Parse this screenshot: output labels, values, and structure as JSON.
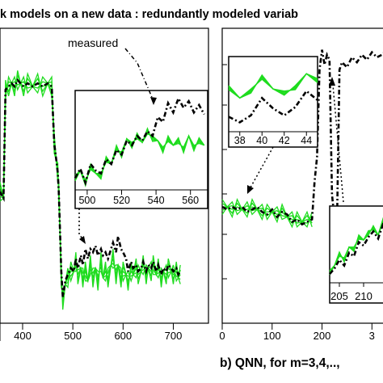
{
  "figure": {
    "title": "k models on a new data : redundantly modeled variab",
    "caption_b": "b) QNN, for m=3,4,.., ",
    "annotation": "measured"
  },
  "colors": {
    "measured": "#000000",
    "model": "#1fdc1f"
  },
  "chart_data": [
    {
      "type": "line",
      "panel": "left",
      "x_ticks": [
        "400",
        "500",
        "600",
        "700"
      ],
      "xlim": [
        355,
        770
      ],
      "series": [
        {
          "role": "measured",
          "x": [
            355,
            362,
            366,
            372,
            378,
            384,
            390,
            396,
            402,
            410,
            420,
            430,
            440,
            450,
            458,
            463,
            467,
            470,
            472,
            474,
            477,
            480,
            485,
            490,
            496,
            502,
            506,
            510,
            516,
            520,
            525,
            530,
            535,
            540,
            545,
            550,
            556,
            560,
            565,
            570,
            576,
            580,
            586,
            590,
            596,
            600,
            606,
            610,
            616,
            620,
            626,
            630,
            636,
            640,
            646,
            650,
            656,
            660,
            666,
            670,
            676,
            680,
            686,
            690,
            696,
            700,
            706,
            710,
            714
          ],
          "y": [
            0.3,
            0.28,
            0.62,
            0.63,
            0.64,
            0.63,
            0.65,
            0.64,
            0.63,
            0.64,
            0.63,
            0.64,
            0.63,
            0.64,
            0.63,
            0.45,
            0.4,
            0.36,
            0.3,
            0.2,
            0.05,
            -0.03,
            0.02,
            0.04,
            0.06,
            0.05,
            0.09,
            0.06,
            0.1,
            0.07,
            0.12,
            0.09,
            0.12,
            0.11,
            0.13,
            0.1,
            0.12,
            0.1,
            0.11,
            0.09,
            0.12,
            0.14,
            0.11,
            0.16,
            0.12,
            0.11,
            0.09,
            0.05,
            0.08,
            0.06,
            0.07,
            0.05,
            0.06,
            0.08,
            0.05,
            0.07,
            0.06,
            0.08,
            0.05,
            0.07,
            0.04,
            0.06,
            0.05,
            0.07,
            0.06,
            0.05,
            0.06,
            0.04,
            0.05
          ]
        },
        {
          "role": "model",
          "x": [
            355,
            362,
            366,
            372,
            378,
            384,
            390,
            396,
            402,
            410,
            420,
            430,
            440,
            450,
            458,
            463,
            467,
            470,
            472,
            474,
            477,
            480,
            485,
            490,
            496,
            502,
            506,
            510,
            516,
            520,
            525,
            530,
            535,
            540,
            545,
            550,
            556,
            560,
            565,
            570,
            576,
            580,
            586,
            590,
            596,
            600,
            606,
            610,
            616,
            620,
            626,
            630,
            636,
            640,
            646,
            650,
            656,
            660,
            666,
            670,
            676,
            680,
            686,
            690,
            696,
            700,
            706,
            710,
            714
          ],
          "y": [
            0.3,
            0.28,
            0.62,
            0.63,
            0.64,
            0.63,
            0.65,
            0.64,
            0.63,
            0.64,
            0.63,
            0.64,
            0.63,
            0.64,
            0.63,
            0.45,
            0.4,
            0.36,
            0.3,
            0.2,
            0.03,
            -0.04,
            0.01,
            0.03,
            0.05,
            0.05,
            0.08,
            0.04,
            0.06,
            0.03,
            0.05,
            0.02,
            0.07,
            0.03,
            0.06,
            0.02,
            0.08,
            0.03,
            0.05,
            0.03,
            0.07,
            0.09,
            0.04,
            0.07,
            0.03,
            0.05,
            0.04,
            0.02,
            0.05,
            0.04,
            0.06,
            0.04,
            0.05,
            0.07,
            0.04,
            0.06,
            0.05,
            0.07,
            0.04,
            0.06,
            0.03,
            0.05,
            0.04,
            0.06,
            0.05,
            0.04,
            0.05,
            0.03,
            0.04
          ]
        }
      ]
    },
    {
      "type": "line",
      "panel": "left-inset",
      "x_ticks": [
        "500",
        "520",
        "540",
        "560"
      ],
      "xlim": [
        493,
        570
      ],
      "series": [
        {
          "role": "measured",
          "x": [
            493,
            496,
            499,
            502,
            505,
            508,
            511,
            514,
            517,
            520,
            523,
            526,
            529,
            532,
            535,
            538,
            541,
            544,
            547,
            550,
            553,
            556,
            559,
            562,
            565,
            568
          ],
          "y": [
            0.1,
            0.2,
            0.05,
            0.25,
            0.18,
            0.15,
            0.3,
            0.25,
            0.4,
            0.35,
            0.5,
            0.45,
            0.55,
            0.5,
            0.6,
            0.55,
            0.75,
            0.7,
            0.9,
            0.8,
            0.95,
            0.85,
            0.92,
            0.8,
            0.88,
            0.78
          ]
        },
        {
          "role": "model",
          "x": [
            493,
            496,
            499,
            502,
            505,
            508,
            511,
            514,
            517,
            520,
            523,
            526,
            529,
            532,
            535,
            538,
            541,
            544,
            547,
            550,
            553,
            556,
            559,
            562,
            565,
            568
          ],
          "y": [
            0.1,
            0.18,
            0.05,
            0.22,
            0.15,
            0.12,
            0.3,
            0.25,
            0.42,
            0.35,
            0.52,
            0.45,
            0.55,
            0.48,
            0.6,
            0.52,
            0.5,
            0.4,
            0.52,
            0.45,
            0.5,
            0.4,
            0.55,
            0.42,
            0.5,
            0.45
          ]
        }
      ]
    },
    {
      "type": "line",
      "panel": "right",
      "x_ticks": [
        "0",
        "100",
        "200",
        "3"
      ],
      "xlim": [
        0,
        340
      ],
      "series": [
        {
          "role": "measured",
          "x": [
            0,
            10,
            20,
            30,
            40,
            50,
            60,
            70,
            80,
            90,
            100,
            110,
            120,
            130,
            140,
            150,
            160,
            170,
            180,
            185,
            190,
            195,
            200,
            205,
            210,
            215,
            220,
            225,
            230,
            235,
            240,
            250,
            260,
            270,
            280,
            290,
            300,
            310,
            320,
            330,
            340
          ],
          "y": [
            0.35,
            0.34,
            0.35,
            0.34,
            0.35,
            0.33,
            0.34,
            0.35,
            0.33,
            0.32,
            0.34,
            0.31,
            0.33,
            0.32,
            0.29,
            0.3,
            0.28,
            0.29,
            0.3,
            0.45,
            0.55,
            0.9,
            0.98,
            0.92,
            0.96,
            0.94,
            0.4,
            0.3,
            0.28,
            0.9,
            0.93,
            0.91,
            0.95,
            0.93,
            0.96,
            0.94,
            0.97,
            0.95,
            0.96,
            0.98,
            0.97
          ]
        },
        {
          "role": "model",
          "x": [
            0,
            10,
            20,
            30,
            40,
            50,
            60,
            70,
            80,
            90,
            100,
            110,
            120,
            130,
            140,
            150,
            160,
            170,
            180
          ],
          "y": [
            0.35,
            0.35,
            0.34,
            0.35,
            0.34,
            0.34,
            0.35,
            0.34,
            0.33,
            0.33,
            0.33,
            0.32,
            0.33,
            0.31,
            0.3,
            0.3,
            0.29,
            0.3,
            0.3
          ]
        }
      ]
    },
    {
      "type": "line",
      "panel": "right-inset-top",
      "x_ticks": [
        "38",
        "40",
        "42",
        "44"
      ],
      "xlim": [
        37,
        45
      ],
      "series": [
        {
          "role": "measured",
          "x": [
            37,
            38,
            39,
            40,
            41,
            42,
            43,
            44,
            45
          ],
          "y": [
            0.18,
            0.1,
            0.2,
            0.45,
            0.3,
            0.2,
            0.32,
            0.55,
            0.42
          ]
        },
        {
          "role": "model",
          "x": [
            37,
            38,
            39,
            40,
            41,
            42,
            43,
            44,
            45
          ],
          "y": [
            0.6,
            0.45,
            0.55,
            0.75,
            0.58,
            0.52,
            0.6,
            0.8,
            0.7
          ]
        }
      ]
    },
    {
      "type": "line",
      "panel": "right-inset-bottom",
      "x_ticks": [
        "205",
        "210"
      ],
      "xlim": [
        203,
        215
      ],
      "series": [
        {
          "role": "measured",
          "x": [
            203,
            204,
            205,
            206,
            207,
            208,
            209,
            210,
            211,
            212,
            213,
            214,
            215
          ],
          "y": [
            0.1,
            0.18,
            0.3,
            0.22,
            0.4,
            0.35,
            0.55,
            0.5,
            0.62,
            0.7,
            0.6,
            0.8,
            0.75
          ]
        },
        {
          "role": "model",
          "x": [
            203,
            204,
            205,
            206,
            207,
            208,
            209,
            210,
            211,
            212,
            213,
            214,
            215
          ],
          "y": [
            0.12,
            0.22,
            0.38,
            0.3,
            0.48,
            0.45,
            0.62,
            0.58,
            0.68,
            0.75,
            0.65,
            0.85,
            0.8
          ]
        }
      ]
    }
  ]
}
